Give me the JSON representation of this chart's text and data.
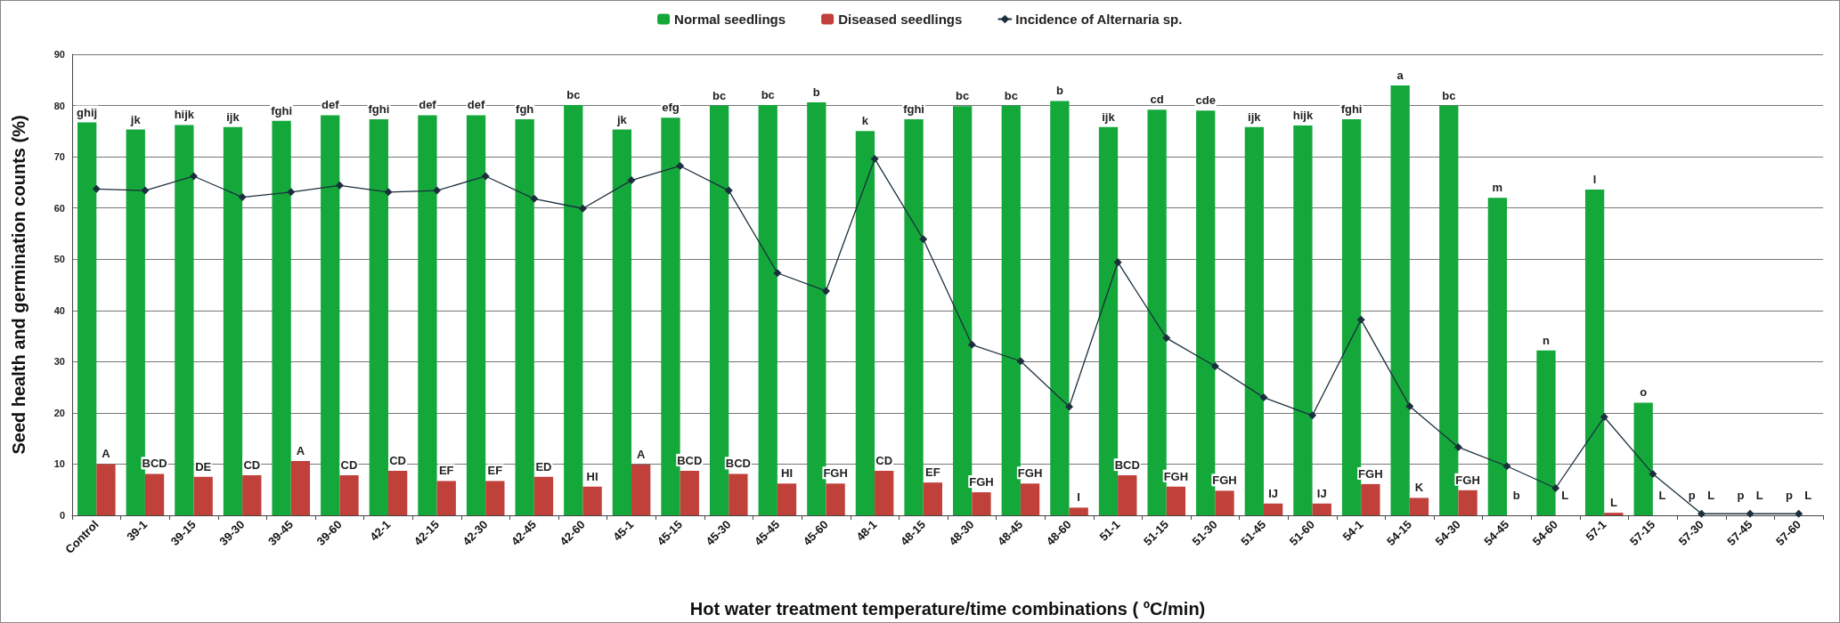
{
  "chart_data": {
    "type": "bar",
    "xlabel": "Hot water treatment temperature/time combinations ( ºC/min)",
    "ylabel": "Seed health and germination counts (%)",
    "categories": [
      "Control",
      "39-1",
      "39-15",
      "39-30",
      "39-45",
      "39-60",
      "42-1",
      "42-15",
      "42-30",
      "42-45",
      "42-60",
      "45-1",
      "45-15",
      "45-30",
      "45-45",
      "45-60",
      "48-1",
      "48-15",
      "48-30",
      "48-45",
      "48-60",
      "51-1",
      "51-15",
      "51-30",
      "51-45",
      "51-60",
      "54-1",
      "54-15",
      "54-30",
      "54-45",
      "54-60",
      "57-1",
      "57-15",
      "57-30",
      "57-45",
      "57-60"
    ],
    "series": [
      {
        "name": "Normal seedlings",
        "color": "#14a83b",
        "values": [
          76.7,
          75.3,
          76.2,
          75.8,
          77.0,
          78.1,
          77.3,
          78.1,
          78.1,
          77.3,
          80.1,
          75.3,
          77.6,
          80.0,
          80.1,
          80.6,
          75.0,
          77.3,
          79.9,
          80.0,
          80.9,
          75.8,
          79.2,
          79.0,
          75.8,
          76.1,
          77.3,
          83.9,
          80.0,
          62.0,
          32.2,
          63.6,
          22.0,
          0,
          0,
          0
        ],
        "value_labels": [
          "ghij",
          "jk",
          "hijk",
          "ijk",
          "fghi",
          "def",
          "fghi",
          "def",
          "def",
          "fgh",
          "bc",
          "jk",
          "efg",
          "bc",
          "bc",
          "b",
          "k",
          "fghi",
          "bc",
          "bc",
          "b",
          "ijk",
          "cd",
          "cde",
          "ijk",
          "hijk",
          "fghi",
          "a",
          "bc",
          "m",
          "n",
          "l",
          "o",
          "p",
          "p",
          "p"
        ]
      },
      {
        "name": "Diseased seedlings",
        "color": "#c0403a",
        "values": [
          10.0,
          8.1,
          7.5,
          7.8,
          10.6,
          7.8,
          8.7,
          6.7,
          6.7,
          7.5,
          5.6,
          9.9,
          8.7,
          8.1,
          6.2,
          6.2,
          8.7,
          6.4,
          4.5,
          6.2,
          1.5,
          7.8,
          5.6,
          4.8,
          2.3,
          2.3,
          6.1,
          3.4,
          4.9,
          0,
          0,
          0.5,
          0,
          0,
          0,
          0
        ],
        "value_labels": [
          "A",
          "BCD",
          "DE",
          "CD",
          "A",
          "CD",
          "CD",
          "EF",
          "EF",
          "ED",
          "HI",
          "A",
          "BCD",
          "BCD",
          "HI",
          "FGH",
          "CD",
          "EF",
          "FGH",
          "FGH",
          "I",
          "BCD",
          "FGH",
          "FGH",
          "IJ",
          "IJ",
          "FGH",
          "K",
          "FGH",
          "b",
          "L",
          "L",
          "L",
          "L",
          "L",
          "L"
        ]
      },
      {
        "name": "Incidence of Alternaria sp.",
        "type": "line",
        "color": "#1b2f3c",
        "marker": "diamond",
        "values": [
          63.7,
          63.4,
          66.2,
          62.1,
          63.1,
          64.4,
          63.1,
          63.4,
          66.2,
          61.8,
          59.9,
          65.4,
          68.2,
          63.4,
          47.3,
          43.8,
          69.6,
          53.9,
          33.3,
          30.1,
          21.2,
          49.4,
          34.6,
          29.1,
          23.0,
          19.5,
          38.2,
          21.3,
          13.3,
          9.6,
          5.3,
          19.2,
          8.1,
          0.3,
          0.3,
          0.3
        ]
      }
    ],
    "ylim": [
      0,
      90
    ],
    "yticks": [
      0,
      10,
      20,
      30,
      40,
      50,
      60,
      70,
      80,
      90
    ],
    "grid": "y",
    "legend": "top"
  }
}
